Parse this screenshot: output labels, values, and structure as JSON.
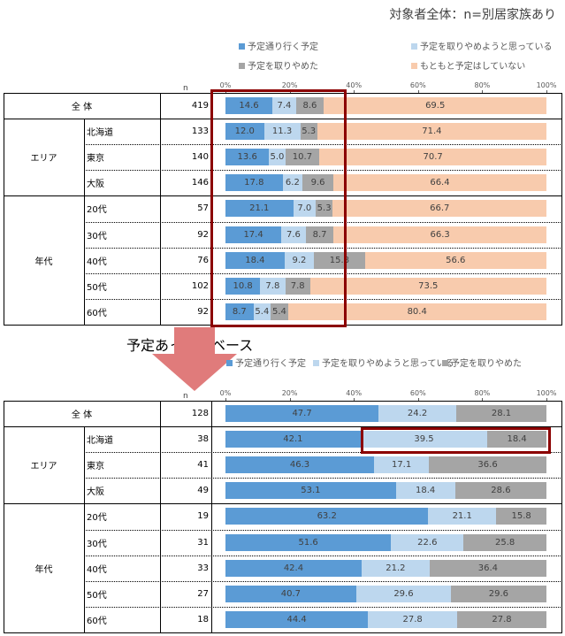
{
  "subtitle": "対象者全体：n=別居家族あり",
  "colors": {
    "go_as_planned": "#5b9bd5",
    "thinking_cancel": "#bdd7ee",
    "cancelled": "#a5a5a5",
    "no_plan": "#f8cbad",
    "highlight": "#8b0000",
    "arrow": "#e07b7b"
  },
  "n_header": "n",
  "section2_title": "予定あった人ベース",
  "chart_data": [
    {
      "type": "bar",
      "orientation": "horizontal-stacked-100",
      "title": "対象者全体：n=別居家族あり",
      "legend": [
        "予定通り行く予定",
        "予定を取りやめようと思っている",
        "予定を取りやめた",
        "もともと予定はしていない"
      ],
      "legend_placement": "top",
      "xlim": [
        0,
        100
      ],
      "ticks": [
        "0%",
        "20%",
        "40%",
        "60%",
        "80%",
        "100%"
      ],
      "groups": [
        {
          "label": "全 体",
          "rows": [
            {
              "label": "",
              "n": "419",
              "values": [
                14.6,
                7.4,
                8.6,
                69.5
              ]
            }
          ]
        },
        {
          "label": "エリア",
          "rows": [
            {
              "label": "北海道",
              "n": "133",
              "values": [
                12.0,
                11.3,
                5.3,
                71.4
              ]
            },
            {
              "label": "東京",
              "n": "140",
              "values": [
                13.6,
                5.0,
                10.7,
                70.7
              ]
            },
            {
              "label": "大阪",
              "n": "146",
              "values": [
                17.8,
                6.2,
                9.6,
                66.4
              ]
            }
          ]
        },
        {
          "label": "年代",
          "rows": [
            {
              "label": "20代",
              "n": "57",
              "values": [
                21.1,
                7.0,
                5.3,
                66.7
              ]
            },
            {
              "label": "30代",
              "n": "92",
              "values": [
                17.4,
                7.6,
                8.7,
                66.3
              ]
            },
            {
              "label": "40代",
              "n": "76",
              "values": [
                18.4,
                9.2,
                15.8,
                56.6
              ]
            },
            {
              "label": "50代",
              "n": "102",
              "values": [
                10.8,
                7.8,
                7.8,
                73.5
              ]
            },
            {
              "label": "60代",
              "n": "92",
              "values": [
                8.7,
                5.4,
                5.4,
                80.4
              ]
            }
          ]
        }
      ],
      "annotation": "highlight box on first three segments (0–37%) of all rows"
    },
    {
      "type": "bar",
      "orientation": "horizontal-stacked-100",
      "title": "予定あった人ベース",
      "legend": [
        "予定通り行く予定",
        "予定を取りやめようと思っている",
        "予定を取りやめた"
      ],
      "legend_placement": "top",
      "xlim": [
        0,
        100
      ],
      "ticks": [
        "0%",
        "20%",
        "40%",
        "60%",
        "80%",
        "100%"
      ],
      "groups": [
        {
          "label": "全 体",
          "rows": [
            {
              "label": "",
              "n": "128",
              "values": [
                47.7,
                24.2,
                28.1
              ]
            }
          ]
        },
        {
          "label": "エリア",
          "rows": [
            {
              "label": "北海道",
              "n": "38",
              "values": [
                42.1,
                39.5,
                18.4
              ]
            },
            {
              "label": "東京",
              "n": "41",
              "values": [
                46.3,
                17.1,
                36.6
              ]
            },
            {
              "label": "大阪",
              "n": "49",
              "values": [
                53.1,
                18.4,
                28.6
              ]
            }
          ]
        },
        {
          "label": "年代",
          "rows": [
            {
              "label": "20代",
              "n": "19",
              "values": [
                63.2,
                21.1,
                15.8
              ]
            },
            {
              "label": "30代",
              "n": "31",
              "values": [
                51.6,
                22.6,
                25.8
              ]
            },
            {
              "label": "40代",
              "n": "33",
              "values": [
                42.4,
                21.2,
                36.4
              ]
            },
            {
              "label": "50代",
              "n": "27",
              "values": [
                40.7,
                29.6,
                29.6
              ]
            },
            {
              "label": "60代",
              "n": "18",
              "values": [
                44.4,
                27.8,
                27.8
              ]
            }
          ]
        }
      ],
      "annotation": "highlight box on 北海道 segments 2–3"
    }
  ]
}
